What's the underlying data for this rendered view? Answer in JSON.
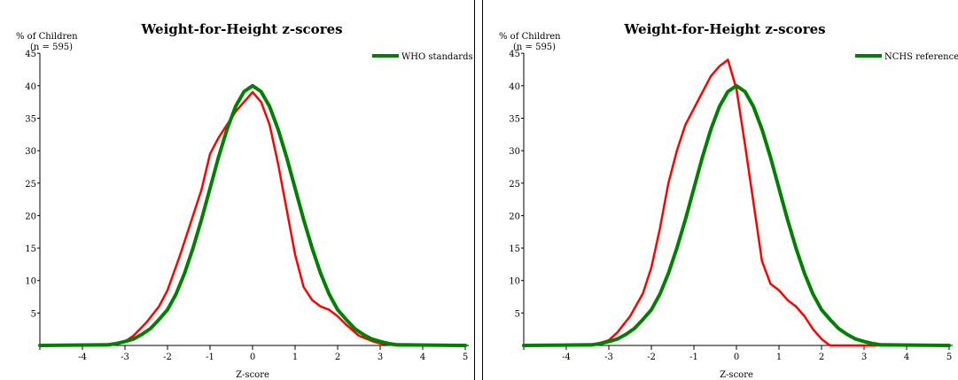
{
  "chart_data": [
    {
      "type": "line",
      "title": "Weight-for-Height z-scores",
      "ylabel": "% of Children",
      "sample_note": "(n = 595)",
      "xlabel": "Z-score",
      "xlim": [
        -5,
        5
      ],
      "ylim": [
        0,
        45
      ],
      "x_ticks": [
        -4,
        -3,
        -2,
        -1,
        0,
        1,
        2,
        3,
        4,
        5
      ],
      "y_ticks": [
        5,
        10,
        15,
        20,
        25,
        30,
        35,
        40,
        45
      ],
      "legend": "top-right",
      "series": [
        {
          "name": "",
          "color": "#ff0000",
          "points": [
            [
              -5,
              0
            ],
            [
              -3.4,
              0
            ],
            [
              -3.0,
              0.6
            ],
            [
              -2.8,
              1.5
            ],
            [
              -2.5,
              3.5
            ],
            [
              -2.2,
              6
            ],
            [
              -2.0,
              8.5
            ],
            [
              -1.7,
              14
            ],
            [
              -1.5,
              18
            ],
            [
              -1.2,
              24
            ],
            [
              -1.0,
              29.5
            ],
            [
              -0.8,
              32
            ],
            [
              -0.6,
              34
            ],
            [
              -0.4,
              36
            ],
            [
              -0.2,
              37.5
            ],
            [
              0,
              39
            ],
            [
              0.2,
              37.5
            ],
            [
              0.4,
              34
            ],
            [
              0.6,
              28
            ],
            [
              0.8,
              21
            ],
            [
              1.0,
              14
            ],
            [
              1.2,
              9
            ],
            [
              1.4,
              7
            ],
            [
              1.6,
              6
            ],
            [
              1.8,
              5.5
            ],
            [
              2.0,
              4.5
            ],
            [
              2.2,
              3.2
            ],
            [
              2.5,
              1.5
            ],
            [
              2.8,
              0.7
            ],
            [
              3.0,
              0.3
            ],
            [
              3.4,
              0
            ],
            [
              5,
              0
            ]
          ]
        },
        {
          "name": "WHO standards",
          "color": "#008000",
          "points": [
            [
              -5,
              0
            ],
            [
              -3.4,
              0.1
            ],
            [
              -3.2,
              0.3
            ],
            [
              -3.0,
              0.6
            ],
            [
              -2.8,
              1.0
            ],
            [
              -2.6,
              1.7
            ],
            [
              -2.4,
              2.6
            ],
            [
              -2.2,
              4.0
            ],
            [
              -2.0,
              5.5
            ],
            [
              -1.8,
              7.9
            ],
            [
              -1.6,
              11.1
            ],
            [
              -1.4,
              15.0
            ],
            [
              -1.2,
              19.4
            ],
            [
              -1.0,
              24.2
            ],
            [
              -0.8,
              29.0
            ],
            [
              -0.6,
              33.3
            ],
            [
              -0.4,
              36.8
            ],
            [
              -0.2,
              39.1
            ],
            [
              0,
              40
            ],
            [
              0.2,
              39.1
            ],
            [
              0.4,
              36.8
            ],
            [
              0.6,
              33.3
            ],
            [
              0.8,
              29.0
            ],
            [
              1.0,
              24.2
            ],
            [
              1.2,
              19.4
            ],
            [
              1.4,
              15.0
            ],
            [
              1.6,
              11.1
            ],
            [
              1.8,
              7.9
            ],
            [
              2.0,
              5.5
            ],
            [
              2.2,
              4.0
            ],
            [
              2.4,
              2.6
            ],
            [
              2.6,
              1.7
            ],
            [
              2.8,
              1.0
            ],
            [
              3.0,
              0.6
            ],
            [
              3.2,
              0.3
            ],
            [
              3.4,
              0.1
            ],
            [
              5,
              0
            ]
          ]
        }
      ]
    },
    {
      "type": "line",
      "title": "Weight-for-Height z-scores",
      "ylabel": "% of Children",
      "sample_note": "(n = 595)",
      "xlabel": "Z-score",
      "xlim": [
        -5,
        5
      ],
      "ylim": [
        0,
        45
      ],
      "x_ticks": [
        -4,
        -3,
        -2,
        -1,
        0,
        1,
        2,
        3,
        4,
        5
      ],
      "y_ticks": [
        5,
        10,
        15,
        20,
        25,
        30,
        35,
        40,
        45
      ],
      "legend": "top-right",
      "series": [
        {
          "name": "",
          "color": "#ff0000",
          "points": [
            [
              -5,
              0
            ],
            [
              -3.4,
              0
            ],
            [
              -3.0,
              0.8
            ],
            [
              -2.8,
              2
            ],
            [
              -2.5,
              4.5
            ],
            [
              -2.2,
              8
            ],
            [
              -2.0,
              12
            ],
            [
              -1.8,
              18
            ],
            [
              -1.6,
              25
            ],
            [
              -1.4,
              30
            ],
            [
              -1.2,
              34
            ],
            [
              -1.0,
              36.5
            ],
            [
              -0.8,
              39
            ],
            [
              -0.6,
              41.5
            ],
            [
              -0.4,
              43
            ],
            [
              -0.2,
              44
            ],
            [
              0,
              39.5
            ],
            [
              0.2,
              31
            ],
            [
              0.4,
              22
            ],
            [
              0.6,
              13
            ],
            [
              0.8,
              9.5
            ],
            [
              1.0,
              8.5
            ],
            [
              1.2,
              7
            ],
            [
              1.4,
              6
            ],
            [
              1.6,
              4.5
            ],
            [
              1.8,
              2.5
            ],
            [
              2.0,
              1
            ],
            [
              2.2,
              0
            ],
            [
              5,
              0
            ]
          ]
        },
        {
          "name": "NCHS reference",
          "color": "#008000",
          "points": [
            [
              -5,
              0
            ],
            [
              -3.4,
              0.1
            ],
            [
              -3.2,
              0.3
            ],
            [
              -3.0,
              0.6
            ],
            [
              -2.8,
              1.0
            ],
            [
              -2.6,
              1.7
            ],
            [
              -2.4,
              2.6
            ],
            [
              -2.2,
              4.0
            ],
            [
              -2.0,
              5.5
            ],
            [
              -1.8,
              7.9
            ],
            [
              -1.6,
              11.1
            ],
            [
              -1.4,
              15.0
            ],
            [
              -1.2,
              19.4
            ],
            [
              -1.0,
              24.2
            ],
            [
              -0.8,
              29.0
            ],
            [
              -0.6,
              33.3
            ],
            [
              -0.4,
              36.8
            ],
            [
              -0.2,
              39.1
            ],
            [
              0,
              40
            ],
            [
              0.2,
              39.1
            ],
            [
              0.4,
              36.8
            ],
            [
              0.6,
              33.3
            ],
            [
              0.8,
              29.0
            ],
            [
              1.0,
              24.2
            ],
            [
              1.2,
              19.4
            ],
            [
              1.4,
              15.0
            ],
            [
              1.6,
              11.1
            ],
            [
              1.8,
              7.9
            ],
            [
              2.0,
              5.5
            ],
            [
              2.2,
              4.0
            ],
            [
              2.4,
              2.6
            ],
            [
              2.6,
              1.7
            ],
            [
              2.8,
              1.0
            ],
            [
              3.0,
              0.6
            ],
            [
              3.2,
              0.3
            ],
            [
              3.4,
              0.1
            ],
            [
              5,
              0
            ]
          ]
        }
      ]
    }
  ]
}
